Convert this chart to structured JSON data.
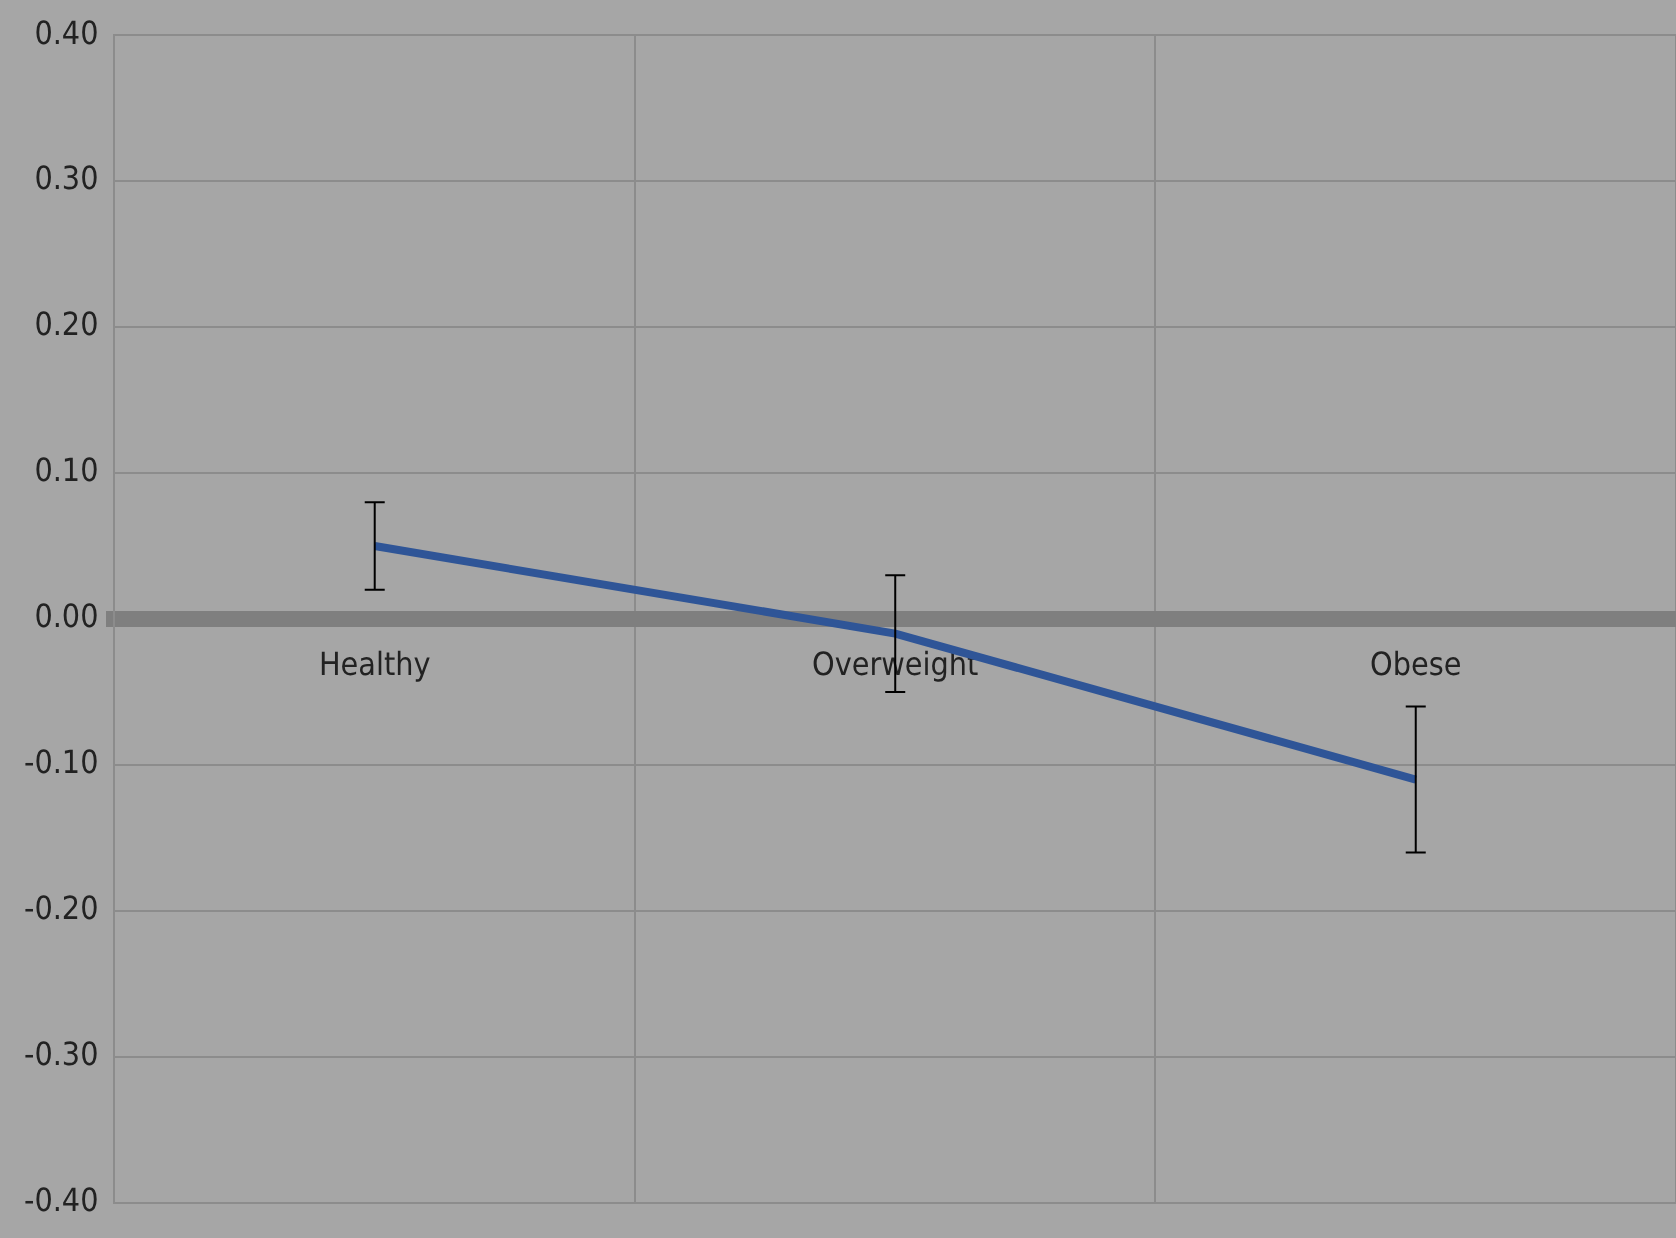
{
  "chart_data": {
    "type": "line",
    "categories": [
      "Healthy",
      "Overweight",
      "Obese"
    ],
    "series": [
      {
        "color": "#2f5597",
        "values": [
          0.05,
          -0.01,
          -0.11
        ],
        "errors": [
          0.03,
          0.04,
          0.05
        ]
      }
    ],
    "ylim": [
      -0.4,
      0.4
    ],
    "yticks": [
      {
        "value": -0.4,
        "label": "-0.40"
      },
      {
        "value": -0.3,
        "label": "-0.30"
      },
      {
        "value": -0.2,
        "label": "-0.20"
      },
      {
        "value": -0.1,
        "label": "-0.10"
      },
      {
        "value": 0,
        "label": "0.00"
      },
      {
        "value": 0.1,
        "label": "0.10"
      },
      {
        "value": 0.2,
        "label": "0.20"
      },
      {
        "value": 0.3,
        "label": "0.30"
      },
      {
        "value": 0.4,
        "label": "0.40"
      }
    ],
    "grid": true,
    "marker": "none",
    "line_style": "solid",
    "legend": false
  }
}
